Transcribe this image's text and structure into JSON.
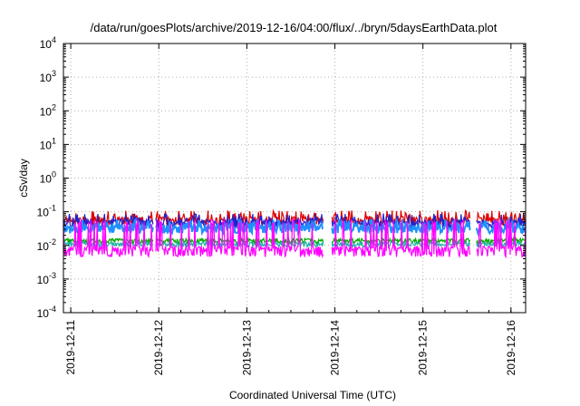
{
  "chart_data": {
    "type": "line",
    "title": "/data/run/goesPlots/archive/2019-12-16/04:00/flux/../bryn/5daysEarthData.plot",
    "xlabel": "Coordinated Universal Time (UTC)",
    "ylabel": "cSv/day",
    "y_scale": "log",
    "ylim": [
      0.0001,
      10000
    ],
    "y_ticks": [
      {
        "base": "10",
        "exp": "-4",
        "value": 0.0001
      },
      {
        "base": "10",
        "exp": "-3",
        "value": 0.001
      },
      {
        "base": "10",
        "exp": "-2",
        "value": 0.01
      },
      {
        "base": "10",
        "exp": "-1",
        "value": 0.1
      },
      {
        "base": "10",
        "exp": "0",
        "value": 1
      },
      {
        "base": "10",
        "exp": "1",
        "value": 10
      },
      {
        "base": "10",
        "exp": "2",
        "value": 100
      },
      {
        "base": "10",
        "exp": "3",
        "value": 1000
      },
      {
        "base": "10",
        "exp": "4",
        "value": 10000
      }
    ],
    "xlim": [
      "2019-12-10 22:00",
      "2019-12-16 04:00"
    ],
    "x_ticks": [
      "2019-12-11",
      "2019-12-12",
      "2019-12-13",
      "2019-12-14",
      "2019-12-15",
      "2019-12-16"
    ],
    "grid": true,
    "gaps": [
      [
        "2019-12-11 22:30",
        "2019-12-11 23:00"
      ],
      [
        "2019-12-13 21:00",
        "2019-12-13 23:00"
      ],
      [
        "2019-12-15 13:00",
        "2019-12-15 14:30"
      ]
    ],
    "series": [
      {
        "color": "#dd0000",
        "base": 0.06,
        "low": 0.045,
        "high": 0.11,
        "noise": "spiky"
      },
      {
        "color": "#2222cc",
        "base": 0.05,
        "low": 0.035,
        "high": 0.09,
        "noise": "spiky"
      },
      {
        "color": "#1e90ff",
        "base": 0.035,
        "low": 0.025,
        "high": 0.06,
        "noise": "spiky"
      },
      {
        "color": "#00aa00",
        "base": 0.014,
        "low": 0.011,
        "high": 0.02,
        "noise": "smooth"
      },
      {
        "color": "#20b2aa",
        "base": 0.011,
        "low": 0.009,
        "high": 0.016,
        "noise": "smooth"
      },
      {
        "color": "#ff00ff",
        "base": 0.008,
        "low": 0.005,
        "high": 0.06,
        "noise": "spiky"
      }
    ]
  }
}
